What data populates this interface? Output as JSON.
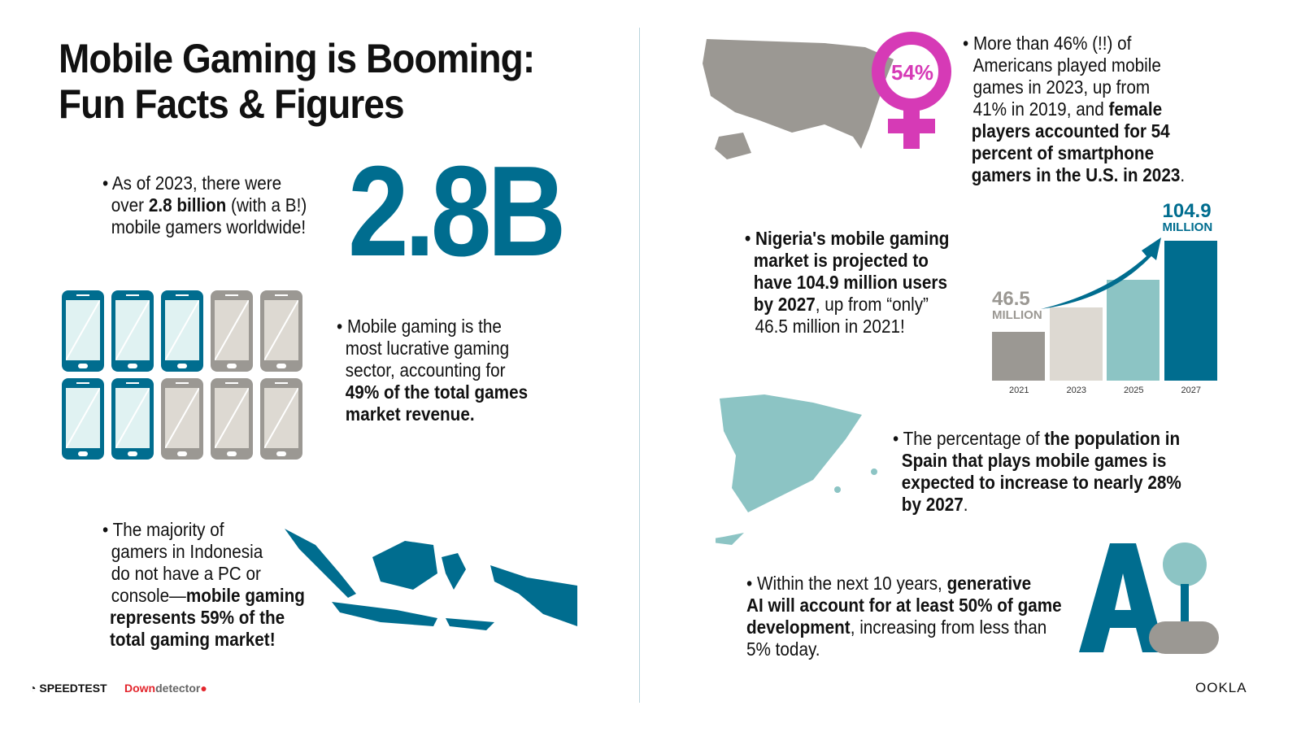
{
  "title": {
    "line1": "Mobile Gaming is Booming:",
    "line2": "Fun Facts & Figures"
  },
  "colors": {
    "teal": "#006d8f",
    "light_teal": "#8cc4c4",
    "gray": "#9b9893",
    "beige": "#ddd9d2",
    "magenta": "#d63ab6"
  },
  "fact_gamers": {
    "pre": "• As of 2023, there were",
    "l2a": "over ",
    "l2b": "2.8 billion",
    "l2c": " (with a B!)",
    "l3": "mobile gamers worldwide!",
    "big": "2.8B"
  },
  "fact_revenue": {
    "l1": "• Mobile gaming is the",
    "l2": "most lucrative gaming",
    "l3": "sector, accounting for",
    "l4": "49% of the total games",
    "l5": "market revenue.",
    "phones_teal": 5,
    "phones_total": 10
  },
  "fact_indonesia": {
    "l1": "• The majority of",
    "l2": "gamers in Indonesia",
    "l3": "do not have a PC or",
    "l4a": "console—",
    "l4b": "mobile gaming",
    "l5": "represents 59% of the",
    "l6": "total gaming market!"
  },
  "fact_us": {
    "badge": "54%",
    "l1": "• More than 46% (!!) of",
    "l2": "Americans played mobile",
    "l3": "games in 2023, up from",
    "l4a": "41% in 2019, and ",
    "l4b": "female",
    "l5": "players accounted for 54",
    "l6": "percent of smartphone",
    "l7": "gamers in the U.S. in 2023",
    "l7end": "."
  },
  "fact_nigeria": {
    "l1": "• Nigeria's mobile gaming",
    "l2": "market is projected to",
    "l3": "have 104.9 million users",
    "l4a": "by 2027",
    "l4b": ", up from “only”",
    "l5": "46.5 million in 2021!"
  },
  "chart_data": {
    "type": "bar",
    "categories": [
      "2021",
      "2023",
      "2025",
      "2027"
    ],
    "values": [
      46.5,
      62,
      80,
      104.9
    ],
    "data_labels": [
      {
        "value": "46.5",
        "unit": "MILLION"
      },
      null,
      null,
      {
        "value": "104.9",
        "unit": "MILLION"
      }
    ],
    "colors": [
      "#9b9893",
      "#ddd9d2",
      "#8cc4c4",
      "#006d8f"
    ],
    "grid": false
  },
  "fact_spain": {
    "l1a": "• The percentage of ",
    "l1b": "the population in",
    "l2": "Spain that plays mobile games is",
    "l3": "expected to increase to nearly 28%",
    "l4": "by 2027",
    "l4end": "."
  },
  "fact_ai": {
    "l1a": "• Within the next 10 years, ",
    "l1b": "generative",
    "l2": "AI will account for at least 50% of game",
    "l3a": "development",
    "l3b": ", increasing from less than",
    "l4": "5% today.",
    "logo": "AI"
  },
  "footer": {
    "speedtest": "SPEEDTEST",
    "down": "Down",
    "detector": "detector",
    "ookla": "OOKLA"
  }
}
